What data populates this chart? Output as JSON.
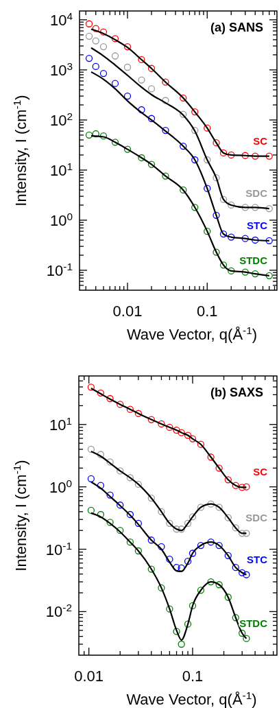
{
  "chart_data": [
    {
      "type": "scatter",
      "title": "(a) SANS",
      "xlabel": "Wave Vector, q(Å$^{-1}$)",
      "ylabel": "Intensity, I (cm$^{-1}$)",
      "log": "xy",
      "marker": "circle",
      "xlim": [
        0.0025,
        0.75
      ],
      "ylim": [
        0.04,
        15000
      ],
      "xticks": [
        {
          "value": 0.003,
          "label": null
        },
        {
          "value": 0.004,
          "label": null
        },
        {
          "value": 0.005,
          "label": null
        },
        {
          "value": 0.006,
          "label": null
        },
        {
          "value": 0.007,
          "label": null
        },
        {
          "value": 0.008,
          "label": null
        },
        {
          "value": 0.009,
          "label": null
        },
        {
          "value": 0.01,
          "label": "0.01"
        },
        {
          "value": 0.02,
          "label": null
        },
        {
          "value": 0.03,
          "label": null
        },
        {
          "value": 0.04,
          "label": null
        },
        {
          "value": 0.05,
          "label": null
        },
        {
          "value": 0.06,
          "label": null
        },
        {
          "value": 0.07,
          "label": null
        },
        {
          "value": 0.08,
          "label": null
        },
        {
          "value": 0.09,
          "label": null
        },
        {
          "value": 0.1,
          "label": "0.1"
        },
        {
          "value": 0.2,
          "label": null
        },
        {
          "value": 0.3,
          "label": null
        },
        {
          "value": 0.4,
          "label": null
        },
        {
          "value": 0.5,
          "label": null
        },
        {
          "value": 0.6,
          "label": null
        },
        {
          "value": 0.7,
          "label": null
        }
      ],
      "yticks": [
        {
          "value": 0.05,
          "label": null
        },
        {
          "value": 0.06,
          "label": null
        },
        {
          "value": 0.07,
          "label": null
        },
        {
          "value": 0.08,
          "label": null
        },
        {
          "value": 0.09,
          "label": null
        },
        {
          "value": 0.1,
          "label": "10$^{-1}$"
        },
        {
          "value": 0.2,
          "label": null
        },
        {
          "value": 0.3,
          "label": null
        },
        {
          "value": 0.4,
          "label": null
        },
        {
          "value": 0.5,
          "label": null
        },
        {
          "value": 0.6,
          "label": null
        },
        {
          "value": 0.7,
          "label": null
        },
        {
          "value": 0.8,
          "label": null
        },
        {
          "value": 0.9,
          "label": null
        },
        {
          "value": 1,
          "label": "10$^{0}$"
        },
        {
          "value": 2,
          "label": null
        },
        {
          "value": 3,
          "label": null
        },
        {
          "value": 4,
          "label": null
        },
        {
          "value": 5,
          "label": null
        },
        {
          "value": 6,
          "label": null
        },
        {
          "value": 7,
          "label": null
        },
        {
          "value": 8,
          "label": null
        },
        {
          "value": 9,
          "label": null
        },
        {
          "value": 10,
          "label": "10$^{1}$"
        },
        {
          "value": 20,
          "label": null
        },
        {
          "value": 30,
          "label": null
        },
        {
          "value": 40,
          "label": null
        },
        {
          "value": 50,
          "label": null
        },
        {
          "value": 60,
          "label": null
        },
        {
          "value": 70,
          "label": null
        },
        {
          "value": 80,
          "label": null
        },
        {
          "value": 90,
          "label": null
        },
        {
          "value": 100,
          "label": "10$^{2}$"
        },
        {
          "value": 200,
          "label": null
        },
        {
          "value": 300,
          "label": null
        },
        {
          "value": 400,
          "label": null
        },
        {
          "value": 500,
          "label": null
        },
        {
          "value": 600,
          "label": null
        },
        {
          "value": 700,
          "label": null
        },
        {
          "value": 800,
          "label": null
        },
        {
          "value": 900,
          "label": null
        },
        {
          "value": 1000,
          "label": "10$^{3}$"
        },
        {
          "value": 2000,
          "label": null
        },
        {
          "value": 3000,
          "label": null
        },
        {
          "value": 4000,
          "label": null
        },
        {
          "value": 5000,
          "label": null
        },
        {
          "value": 6000,
          "label": null
        },
        {
          "value": 7000,
          "label": null
        },
        {
          "value": 8000,
          "label": null
        },
        {
          "value": 9000,
          "label": null
        },
        {
          "value": 10000,
          "label": "10$^{4}$"
        }
      ],
      "series": [
        {
          "name": "SC",
          "type": "scatter",
          "color": "#ff0000",
          "x": [
            0.0033,
            0.004,
            0.005,
            0.007,
            0.01,
            0.015,
            0.02,
            0.03,
            0.05,
            0.07,
            0.1,
            0.13,
            0.16,
            0.2,
            0.3,
            0.4,
            0.6
          ],
          "values": [
            8300,
            6700,
            5700,
            4200,
            2900,
            1600,
            1070,
            570,
            275,
            145,
            69,
            35,
            22,
            20,
            19.5,
            19,
            19
          ]
        },
        {
          "name": "SDC",
          "type": "scatter",
          "color": "#999999",
          "x": [
            0.0033,
            0.004,
            0.005,
            0.007,
            0.01,
            0.015,
            0.02,
            0.03,
            0.05,
            0.07,
            0.1,
            0.13,
            0.16,
            0.2,
            0.3,
            0.4,
            0.6
          ],
          "values": [
            4700,
            3800,
            2900,
            1900,
            1130,
            630,
            420,
            245,
            130,
            62,
            16,
            7,
            2.6,
            2,
            1.8,
            1.8,
            1.7
          ]
        },
        {
          "name": "STC",
          "type": "scatter",
          "color": "#0000ff",
          "x": [
            0.0033,
            0.004,
            0.005,
            0.007,
            0.01,
            0.015,
            0.02,
            0.03,
            0.05,
            0.07,
            0.1,
            0.13,
            0.16,
            0.2,
            0.3,
            0.4,
            0.6
          ],
          "values": [
            1700,
            1170,
            850,
            535,
            300,
            160,
            107,
            62,
            30,
            16,
            4.3,
            1.25,
            0.53,
            0.46,
            0.43,
            0.4,
            0.39
          ]
        },
        {
          "name": "STDC",
          "type": "scatter",
          "color": "#008000",
          "x": [
            0.0033,
            0.004,
            0.005,
            0.007,
            0.01,
            0.015,
            0.02,
            0.03,
            0.05,
            0.07,
            0.1,
            0.13,
            0.16,
            0.2,
            0.3,
            0.4,
            0.6
          ],
          "values": [
            50,
            53,
            48,
            36,
            26,
            17.6,
            13,
            7.6,
            4,
            1.8,
            0.6,
            0.23,
            0.127,
            0.097,
            0.092,
            0.085,
            0.078
          ]
        },
        {
          "type": "line",
          "marker": "none",
          "color": "#000000",
          "x": [
            0.0035,
            0.005,
            0.007,
            0.01,
            0.015,
            0.02,
            0.03,
            0.05,
            0.07,
            0.1,
            0.13,
            0.16,
            0.2,
            0.3,
            0.4,
            0.6
          ],
          "values": [
            6500,
            5300,
            4000,
            2800,
            1600,
            1070,
            570,
            275,
            145,
            69,
            35,
            22,
            20,
            19.5,
            19,
            19
          ]
        },
        {
          "type": "line",
          "marker": "none",
          "color": "#000000",
          "x": [
            0.0035,
            0.005,
            0.007,
            0.01,
            0.015,
            0.02,
            0.03,
            0.05,
            0.07,
            0.1,
            0.13,
            0.16,
            0.2,
            0.3,
            0.4,
            0.6
          ],
          "values": [
            2750,
            1900,
            1250,
            780,
            450,
            320,
            220,
            125,
            60,
            16,
            7,
            2.6,
            2,
            1.8,
            1.8,
            1.7
          ]
        },
        {
          "type": "line",
          "marker": "none",
          "color": "#000000",
          "x": [
            0.0035,
            0.005,
            0.007,
            0.01,
            0.015,
            0.02,
            0.03,
            0.05,
            0.07,
            0.1,
            0.13,
            0.16,
            0.2,
            0.3,
            0.4,
            0.6
          ],
          "values": [
            910,
            650,
            420,
            240,
            140,
            100,
            60,
            30,
            16,
            4.3,
            1.25,
            0.53,
            0.46,
            0.43,
            0.4,
            0.39
          ]
        },
        {
          "type": "line",
          "marker": "none",
          "color": "#000000",
          "x": [
            0.0035,
            0.005,
            0.007,
            0.01,
            0.015,
            0.02,
            0.03,
            0.05,
            0.07,
            0.1,
            0.13,
            0.16,
            0.2,
            0.3,
            0.4,
            0.6
          ],
          "values": [
            48,
            46,
            36,
            26,
            17.6,
            13,
            7.6,
            4,
            1.8,
            0.6,
            0.23,
            0.127,
            0.097,
            0.092,
            0.085,
            0.078
          ]
        }
      ]
    },
    {
      "type": "scatter",
      "title": "(b) SAXS",
      "xlabel": "Wave Vector, q(Å$^{-1}$)",
      "ylabel": "Intensity, I (cm$^{-1}$)",
      "log": "xy",
      "marker": "circle",
      "xlim": [
        0.008,
        0.65
      ],
      "ylim": [
        0.002,
        60
      ],
      "xticks": [
        {
          "value": 0.009,
          "label": null
        },
        {
          "value": 0.01,
          "label": "0.01"
        },
        {
          "value": 0.02,
          "label": null
        },
        {
          "value": 0.03,
          "label": null
        },
        {
          "value": 0.04,
          "label": null
        },
        {
          "value": 0.05,
          "label": null
        },
        {
          "value": 0.06,
          "label": null
        },
        {
          "value": 0.07,
          "label": null
        },
        {
          "value": 0.08,
          "label": null
        },
        {
          "value": 0.09,
          "label": null
        },
        {
          "value": 0.1,
          "label": "0.1"
        },
        {
          "value": 0.2,
          "label": null
        },
        {
          "value": 0.3,
          "label": null
        },
        {
          "value": 0.4,
          "label": null
        },
        {
          "value": 0.5,
          "label": null
        },
        {
          "value": 0.6,
          "label": null
        }
      ],
      "yticks": [
        {
          "value": 0.003,
          "label": null
        },
        {
          "value": 0.004,
          "label": null
        },
        {
          "value": 0.005,
          "label": null
        },
        {
          "value": 0.006,
          "label": null
        },
        {
          "value": 0.007,
          "label": null
        },
        {
          "value": 0.008,
          "label": null
        },
        {
          "value": 0.009,
          "label": null
        },
        {
          "value": 0.01,
          "label": "10$^{-2}$"
        },
        {
          "value": 0.02,
          "label": null
        },
        {
          "value": 0.03,
          "label": null
        },
        {
          "value": 0.04,
          "label": null
        },
        {
          "value": 0.05,
          "label": null
        },
        {
          "value": 0.06,
          "label": null
        },
        {
          "value": 0.07,
          "label": null
        },
        {
          "value": 0.08,
          "label": null
        },
        {
          "value": 0.09,
          "label": null
        },
        {
          "value": 0.1,
          "label": "10$^{-1}$"
        },
        {
          "value": 0.2,
          "label": null
        },
        {
          "value": 0.3,
          "label": null
        },
        {
          "value": 0.4,
          "label": null
        },
        {
          "value": 0.5,
          "label": null
        },
        {
          "value": 0.6,
          "label": null
        },
        {
          "value": 0.7,
          "label": null
        },
        {
          "value": 0.8,
          "label": null
        },
        {
          "value": 0.9,
          "label": null
        },
        {
          "value": 1,
          "label": "10$^{0}$"
        },
        {
          "value": 2,
          "label": null
        },
        {
          "value": 3,
          "label": null
        },
        {
          "value": 4,
          "label": null
        },
        {
          "value": 5,
          "label": null
        },
        {
          "value": 6,
          "label": null
        },
        {
          "value": 7,
          "label": null
        },
        {
          "value": 8,
          "label": null
        },
        {
          "value": 9,
          "label": null
        },
        {
          "value": 10,
          "label": "10$^{1}$"
        },
        {
          "value": 20,
          "label": null
        },
        {
          "value": 30,
          "label": null
        },
        {
          "value": 40,
          "label": null
        },
        {
          "value": 50,
          "label": null
        }
      ],
      "series": [
        {
          "name": "SC",
          "type": "scatter",
          "color": "#ff0000",
          "x": [
            0.0105,
            0.013,
            0.016,
            0.02,
            0.025,
            0.03,
            0.04,
            0.05,
            0.06,
            0.07,
            0.078,
            0.09,
            0.1,
            0.12,
            0.15,
            0.18,
            0.22,
            0.26,
            0.3,
            0.33
          ],
          "values": [
            39.7,
            32,
            26,
            21,
            17.5,
            15,
            12,
            10.2,
            9,
            8.1,
            7.4,
            6.7,
            5.9,
            4.8,
            3,
            2,
            1.3,
            1.05,
            0.98,
            1
          ]
        },
        {
          "name": "SDC",
          "type": "scatter",
          "color": "#999999",
          "x": [
            0.0105,
            0.013,
            0.016,
            0.02,
            0.025,
            0.03,
            0.04,
            0.05,
            0.06,
            0.07,
            0.078,
            0.09,
            0.1,
            0.12,
            0.15,
            0.18,
            0.22,
            0.26,
            0.3,
            0.33
          ],
          "values": [
            4,
            3.3,
            2.5,
            1.8,
            1.4,
            1.1,
            0.66,
            0.4,
            0.26,
            0.21,
            0.21,
            0.26,
            0.33,
            0.47,
            0.53,
            0.47,
            0.32,
            0.22,
            0.18,
            0.18
          ]
        },
        {
          "name": "STC",
          "type": "scatter",
          "color": "#0000ff",
          "x": [
            0.0105,
            0.013,
            0.016,
            0.02,
            0.025,
            0.03,
            0.04,
            0.05,
            0.06,
            0.07,
            0.078,
            0.09,
            0.1,
            0.12,
            0.15,
            0.18,
            0.22,
            0.26,
            0.3,
            0.33
          ],
          "values": [
            1.35,
            1.05,
            0.74,
            0.51,
            0.36,
            0.26,
            0.14,
            0.11,
            0.069,
            0.051,
            0.05,
            0.064,
            0.086,
            0.115,
            0.13,
            0.115,
            0.079,
            0.051,
            0.042,
            0.039
          ]
        },
        {
          "name": "STDC",
          "type": "scatter",
          "color": "#008000",
          "x": [
            0.0105,
            0.013,
            0.016,
            0.02,
            0.025,
            0.03,
            0.04,
            0.05,
            0.06,
            0.07,
            0.078,
            0.09,
            0.1,
            0.12,
            0.15,
            0.18,
            0.22,
            0.26,
            0.3,
            0.33
          ],
          "values": [
            0.42,
            0.36,
            0.27,
            0.2,
            0.13,
            0.094,
            0.048,
            0.024,
            0.011,
            0.0048,
            0.003,
            0.0063,
            0.0124,
            0.022,
            0.03,
            0.027,
            0.017,
            0.008,
            0.0045,
            0.0037
          ]
        },
        {
          "type": "line",
          "marker": "none",
          "color": "#000000",
          "x": [
            0.0105,
            0.013,
            0.016,
            0.02,
            0.025,
            0.03,
            0.04,
            0.05,
            0.06,
            0.07,
            0.078,
            0.09,
            0.1,
            0.12,
            0.15,
            0.18,
            0.22,
            0.26,
            0.3,
            0.33
          ],
          "values": [
            38,
            31,
            25.5,
            21,
            17.5,
            15,
            12,
            10.2,
            9,
            8.1,
            7.4,
            6.7,
            5.9,
            4.8,
            3,
            2,
            1.3,
            1.05,
            0.98,
            0.98
          ]
        },
        {
          "type": "line",
          "marker": "none",
          "color": "#000000",
          "x": [
            0.0105,
            0.013,
            0.016,
            0.02,
            0.025,
            0.03,
            0.04,
            0.05,
            0.06,
            0.07,
            0.078,
            0.09,
            0.1,
            0.12,
            0.15,
            0.18,
            0.22,
            0.26,
            0.3,
            0.33
          ],
          "values": [
            3.7,
            3.1,
            2.4,
            1.8,
            1.4,
            1.1,
            0.66,
            0.4,
            0.26,
            0.21,
            0.2,
            0.26,
            0.33,
            0.47,
            0.53,
            0.47,
            0.32,
            0.22,
            0.18,
            0.18
          ]
        },
        {
          "type": "line",
          "marker": "none",
          "color": "#000000",
          "x": [
            0.0105,
            0.013,
            0.016,
            0.02,
            0.025,
            0.03,
            0.04,
            0.05,
            0.06,
            0.07,
            0.078,
            0.09,
            0.1,
            0.12,
            0.15,
            0.18,
            0.22,
            0.26,
            0.3,
            0.33
          ],
          "values": [
            1.2,
            0.95,
            0.7,
            0.5,
            0.35,
            0.25,
            0.14,
            0.1,
            0.062,
            0.045,
            0.044,
            0.06,
            0.086,
            0.115,
            0.13,
            0.115,
            0.079,
            0.051,
            0.042,
            0.039
          ]
        },
        {
          "type": "line",
          "marker": "none",
          "color": "#000000",
          "x": [
            0.0105,
            0.013,
            0.016,
            0.02,
            0.025,
            0.03,
            0.04,
            0.05,
            0.06,
            0.07,
            0.078,
            0.09,
            0.1,
            0.12,
            0.15,
            0.18,
            0.22,
            0.26,
            0.3,
            0.33
          ],
          "values": [
            0.38,
            0.33,
            0.26,
            0.19,
            0.13,
            0.094,
            0.048,
            0.024,
            0.011,
            0.005,
            0.0035,
            0.0063,
            0.0124,
            0.022,
            0.03,
            0.027,
            0.017,
            0.008,
            0.0045,
            0.0037
          ]
        }
      ]
    }
  ]
}
